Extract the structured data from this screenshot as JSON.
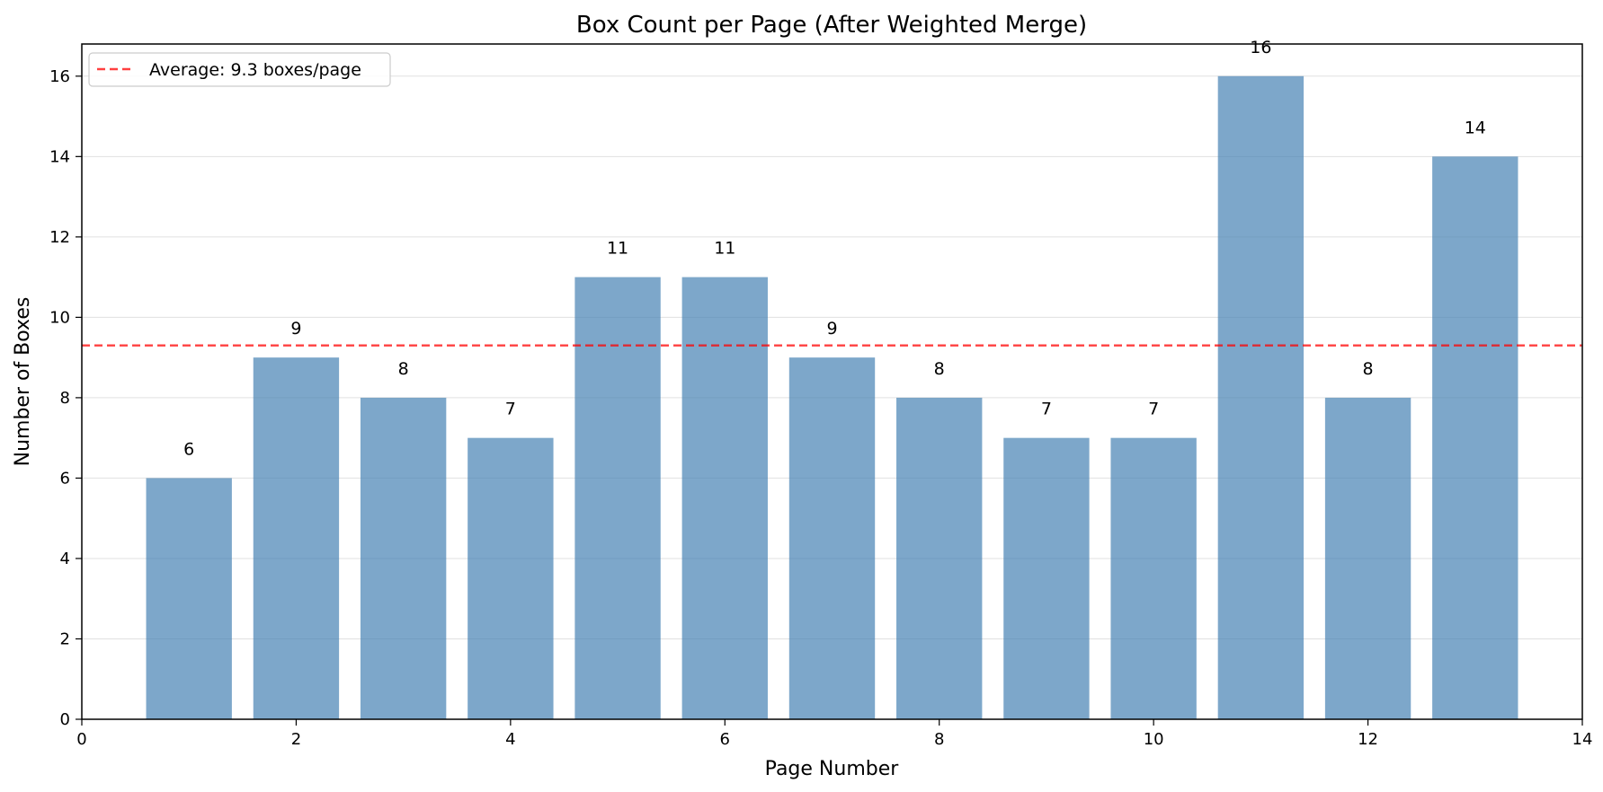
{
  "chart_data": {
    "type": "bar",
    "title": "Box Count per Page (After Weighted Merge)",
    "xlabel": "Page Number",
    "ylabel": "Number of Boxes",
    "x": [
      1,
      2,
      3,
      4,
      5,
      6,
      7,
      8,
      9,
      10,
      11,
      12,
      13
    ],
    "values": [
      6,
      9,
      8,
      7,
      11,
      11,
      9,
      8,
      7,
      7,
      16,
      8,
      14
    ],
    "data_labels": [
      "6",
      "9",
      "8",
      "7",
      "11",
      "11",
      "9",
      "8",
      "7",
      "7",
      "16",
      "8",
      "14"
    ],
    "xlim": [
      0,
      14
    ],
    "ylim": [
      0,
      16.8
    ],
    "xticks": [
      0,
      2,
      4,
      6,
      8,
      10,
      12,
      14
    ],
    "yticks": [
      0,
      2,
      4,
      6,
      8,
      10,
      12,
      14,
      16
    ],
    "grid": "horizontal",
    "bar_color": "#4682b4",
    "average_line": {
      "value": 9.3,
      "label": "Average: 9.3 boxes/page",
      "color": "#ff0000",
      "style": "dashed"
    },
    "legend_position": "top-left"
  }
}
